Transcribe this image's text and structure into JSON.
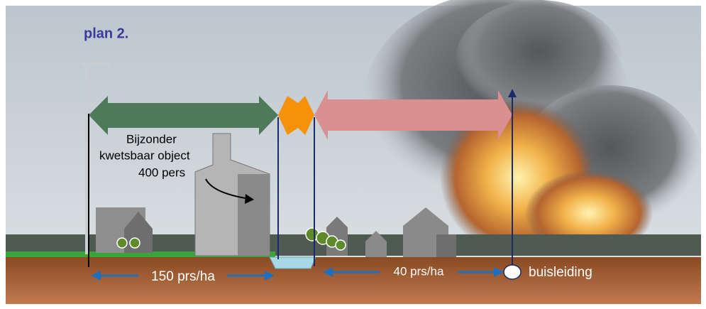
{
  "title": "plan 2.",
  "object_label": [
    "Bijzonder",
    "kwetsbaar object",
    "400 pers"
  ],
  "density_left": "150 prs/ha",
  "density_right": "40 prs/ha",
  "pipeline_label": "buisleiding"
}
